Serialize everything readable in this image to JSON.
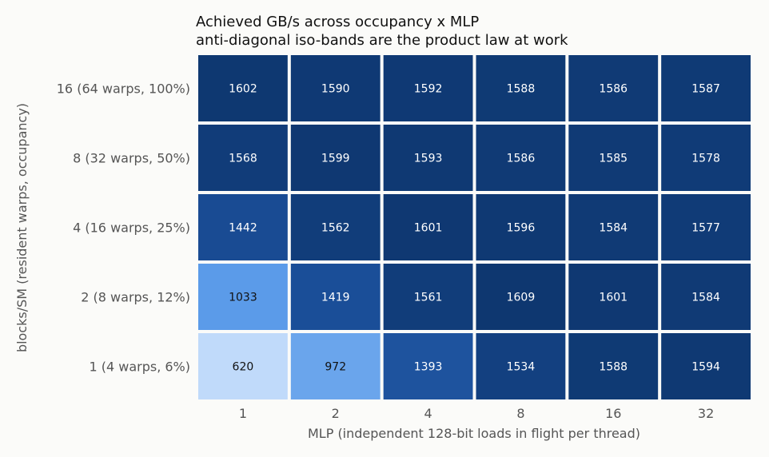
{
  "chart_data": {
    "type": "heatmap",
    "title": "Achieved GB/s across occupancy x MLP",
    "subtitle": "anti-diagonal iso-bands are the product law at work",
    "xlabel": "MLP  (independent 128-bit loads in flight per thread)",
    "ylabel": "blocks/SM  (resident warps, occupancy)",
    "x_categories": [
      "1",
      "2",
      "4",
      "8",
      "16",
      "32"
    ],
    "y_categories": [
      "16  (64 warps, 100%)",
      "8  (32 warps, 50%)",
      "4  (16 warps, 25%)",
      "2  (8 warps, 12%)",
      "1  (4 warps, 6%)"
    ],
    "values": [
      [
        1602,
        1590,
        1592,
        1588,
        1586,
        1587
      ],
      [
        1568,
        1599,
        1593,
        1586,
        1585,
        1578
      ],
      [
        1442,
        1562,
        1601,
        1596,
        1584,
        1577
      ],
      [
        1033,
        1419,
        1561,
        1609,
        1601,
        1584
      ],
      [
        620,
        972,
        1393,
        1534,
        1588,
        1594
      ]
    ],
    "colormap": [
      "#c0dafa",
      "#5a9be9",
      "#1b4f9a",
      "#0e3770"
    ],
    "grid": false,
    "legend": "none"
  }
}
